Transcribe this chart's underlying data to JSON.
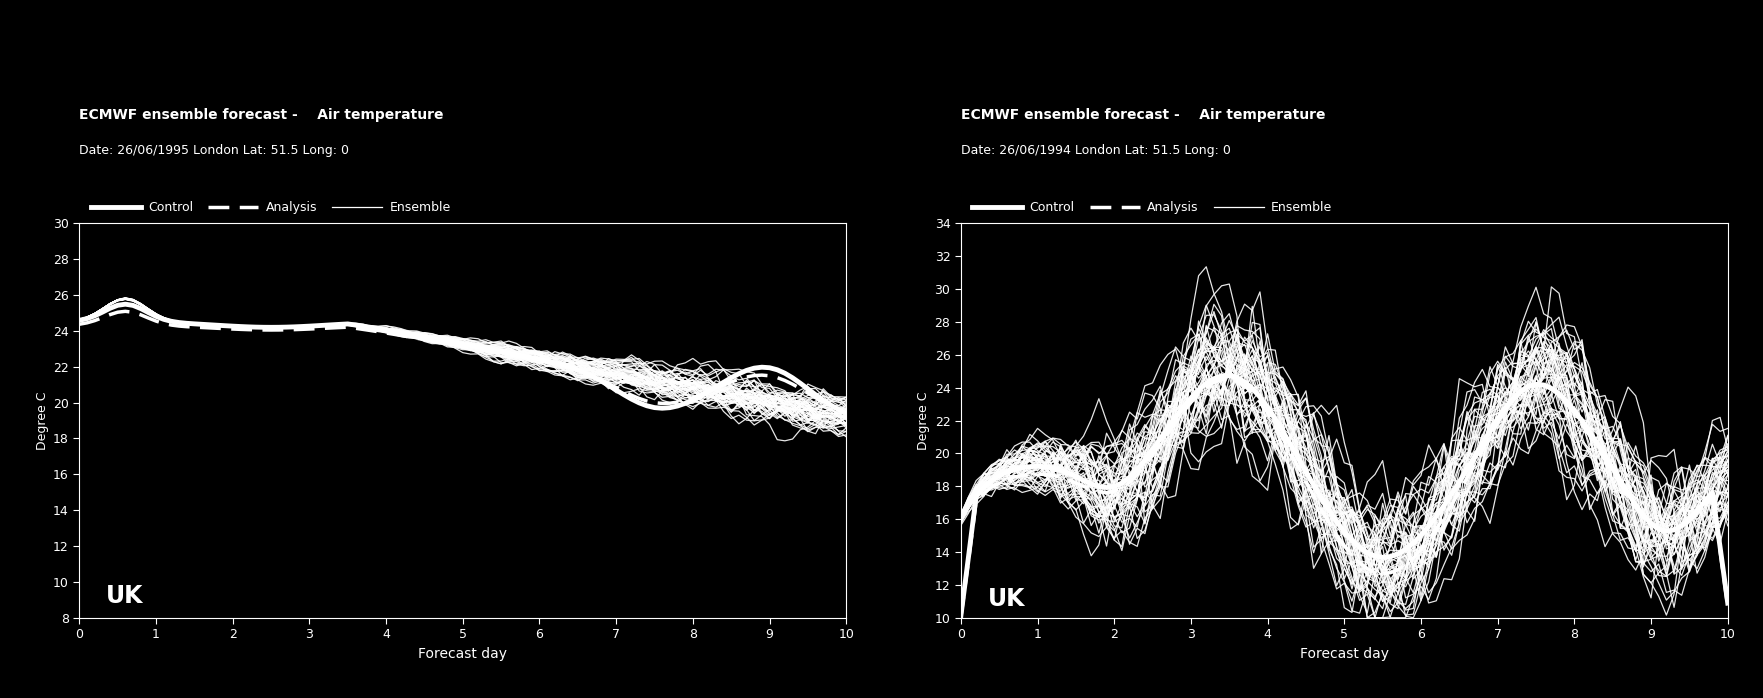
{
  "background_color": "#000000",
  "text_color": "#ffffff",
  "plot1": {
    "title": "ECMWF ensemble forecast -    Air temperature",
    "subtitle": "Date: 26/06/1995 London Lat: 51.5 Long: 0",
    "xlabel": "Forecast day",
    "ylabel": "Degree C",
    "ylim": [
      8,
      30
    ],
    "yticks": [
      8,
      10,
      12,
      14,
      16,
      18,
      20,
      22,
      24,
      26,
      28,
      30
    ],
    "xlim": [
      0,
      10
    ],
    "xticks": [
      0,
      1,
      2,
      3,
      4,
      5,
      6,
      7,
      8,
      9,
      10
    ]
  },
  "plot2": {
    "title": "ECMWF ensemble forecast -    Air temperature",
    "subtitle": "Date: 26/06/1994 London Lat: 51.5 Long: 0",
    "xlabel": "Forecast day",
    "ylabel": "Degree C",
    "ylim": [
      10,
      34
    ],
    "yticks": [
      10,
      12,
      14,
      16,
      18,
      20,
      22,
      24,
      26,
      28,
      30,
      32,
      34
    ],
    "xlim": [
      0,
      10
    ],
    "xticks": [
      0,
      1,
      2,
      3,
      4,
      5,
      6,
      7,
      8,
      9,
      10
    ]
  },
  "control_lw": 3.5,
  "analysis_lw": 2.5,
  "ensemble_lw": 0.9,
  "num_ensemble": 51
}
